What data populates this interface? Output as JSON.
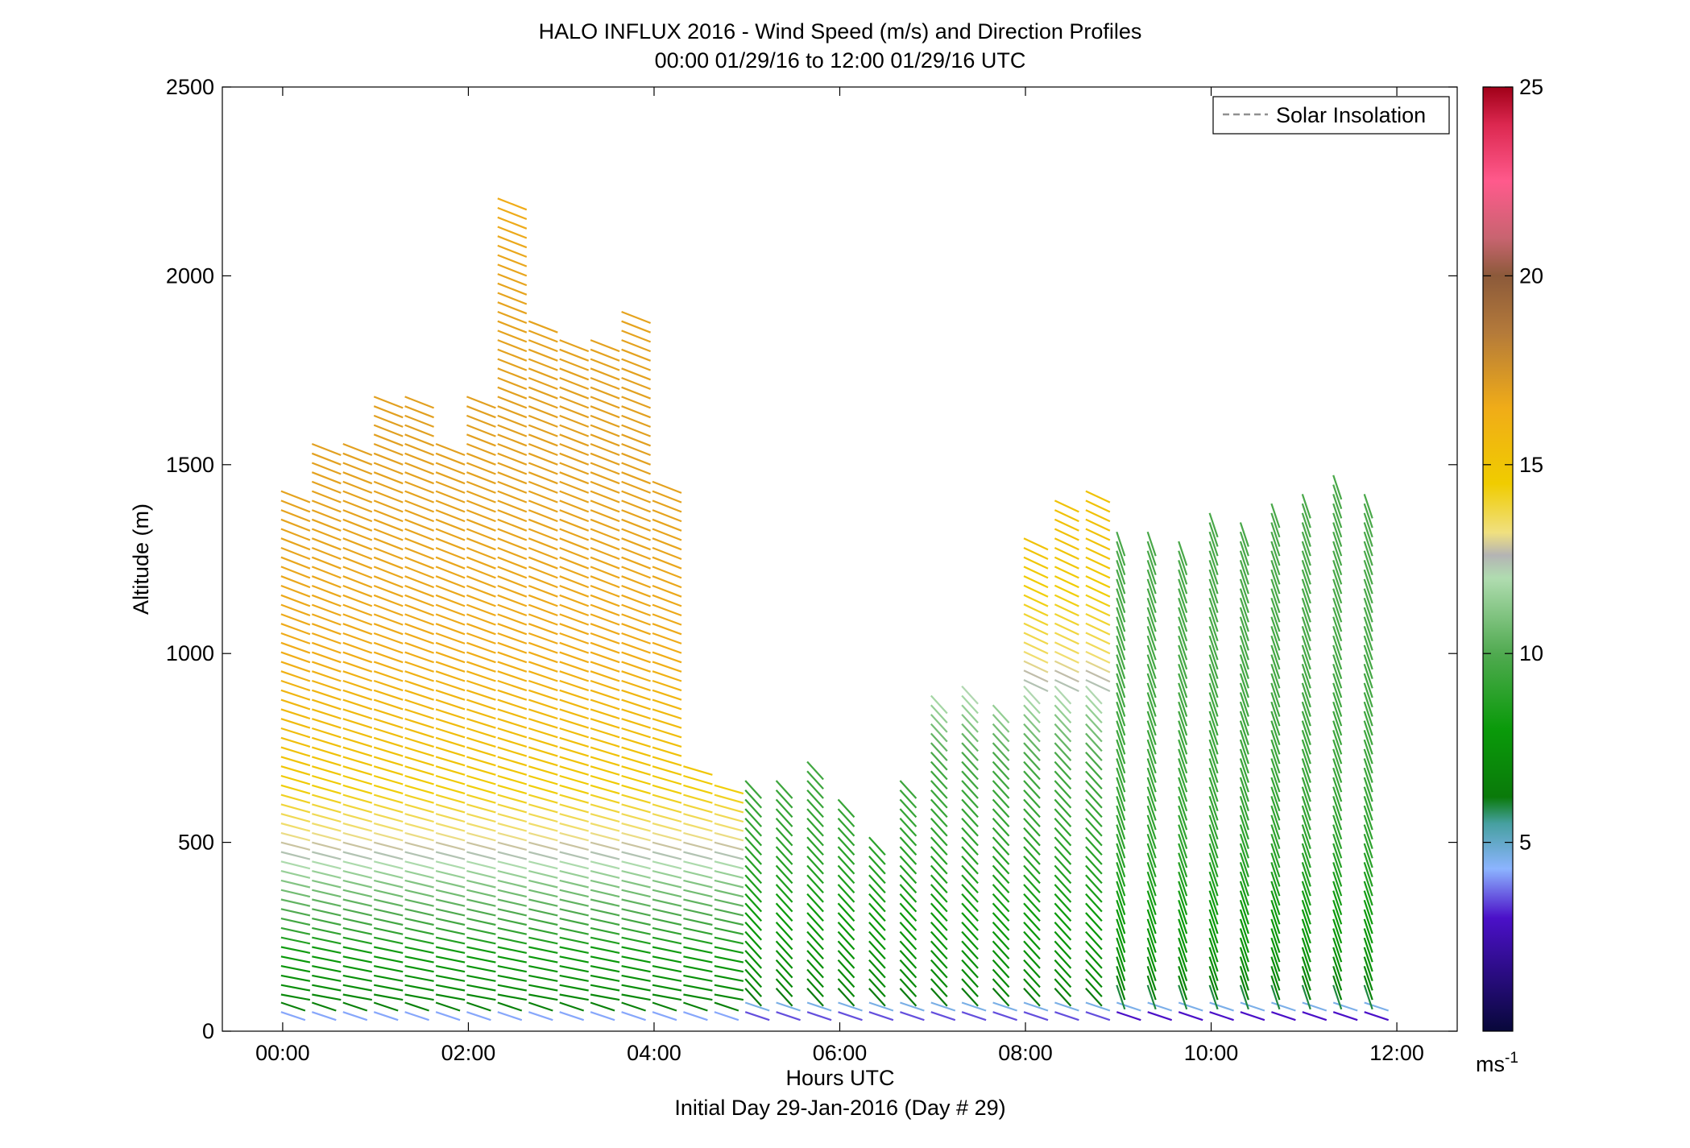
{
  "chart_data": {
    "type": "wind-barb-profile",
    "title": "HALO INFLUX 2016 - Wind Speed (m/s) and Direction Profiles",
    "subtitle": "00:00 01/29/16 to 12:00 01/29/16  UTC",
    "xlabel": "Hours UTC",
    "xlabel2": "Initial Day 29-Jan-2016 (Day # 29)",
    "ylabel": "Altitude (m)",
    "xlim_hours": [
      -0.65,
      12.65
    ],
    "ylim": [
      0,
      2500
    ],
    "x_ticks": [
      {
        "value": 0,
        "label": "00:00"
      },
      {
        "value": 2,
        "label": "02:00"
      },
      {
        "value": 4,
        "label": "04:00"
      },
      {
        "value": 6,
        "label": "06:00"
      },
      {
        "value": 8,
        "label": "08:00"
      },
      {
        "value": 10,
        "label": "10:00"
      },
      {
        "value": 12,
        "label": "12:00"
      }
    ],
    "y_ticks": [
      0,
      500,
      1000,
      1500,
      2000,
      2500
    ],
    "legend": {
      "label": "Solar Insolation",
      "line_style": "dashed",
      "color": "#909090",
      "position": "top-right"
    },
    "colorbar": {
      "min": 0,
      "max": 25,
      "ticks": [
        5,
        10,
        15,
        20,
        25
      ],
      "unit_label": "ms",
      "unit_exponent": "-1",
      "colors": [
        {
          "v": 0,
          "c": "#08083a"
        },
        {
          "v": 3,
          "c": "#4b10c8"
        },
        {
          "v": 4.3,
          "c": "#8cb4ff"
        },
        {
          "v": 5.5,
          "c": "#46a0a0"
        },
        {
          "v": 6.2,
          "c": "#0a7a0a"
        },
        {
          "v": 8,
          "c": "#0a9a0a"
        },
        {
          "v": 10,
          "c": "#50aa50"
        },
        {
          "v": 12,
          "c": "#b0dcb0"
        },
        {
          "v": 12.6,
          "c": "#b4b4b4"
        },
        {
          "v": 13.2,
          "c": "#f0e080"
        },
        {
          "v": 14.5,
          "c": "#f0cc00"
        },
        {
          "v": 16.5,
          "c": "#f0ac18"
        },
        {
          "v": 18.5,
          "c": "#b47a3a"
        },
        {
          "v": 20,
          "c": "#8c5a3a"
        },
        {
          "v": 21,
          "c": "#c86470"
        },
        {
          "v": 22.5,
          "c": "#ff5a8c"
        },
        {
          "v": 24,
          "c": "#dc2850"
        },
        {
          "v": 25,
          "c": "#a00018"
        }
      ]
    },
    "wind_profiles": {
      "times_hours": [
        0,
        0.333,
        0.667,
        1.0,
        1.333,
        1.667,
        2.0,
        2.333,
        2.667,
        3.0,
        3.333,
        3.667,
        4.0,
        4.333,
        4.667,
        5.0,
        5.333,
        5.667,
        6.0,
        6.333,
        6.667,
        7.0,
        7.333,
        7.667,
        8.0,
        8.333,
        8.667,
        9.0,
        9.333,
        9.667,
        10.0,
        10.333,
        10.667,
        11.0,
        11.333,
        11.667
      ],
      "top_altitude_m": [
        1420,
        1550,
        1550,
        1665,
        1665,
        1550,
        1670,
        2190,
        1880,
        1830,
        1820,
        1890,
        1450,
        700,
        650,
        640,
        660,
        700,
        590,
        500,
        640,
        870,
        900,
        860,
        1310,
        1390,
        1430,
        1310,
        1310,
        1280,
        1360,
        1330,
        1380,
        1400,
        1450,
        1400
      ],
      "altitude_step_m": 25,
      "speed_profile_ms": {
        "altitudes_m": [
          40,
          60,
          100,
          200,
          300,
          400,
          500,
          700,
          1000,
          1300,
          1600,
          2000,
          2200
        ],
        "early_0000_0500": [
          4.2,
          6.5,
          7.2,
          8.0,
          9.8,
          11.2,
          13.0,
          15.0,
          16.5,
          16.8,
          17.0,
          16.8,
          16.5
        ],
        "mid_0500_0900": [
          3.5,
          4.3,
          6.8,
          7.5,
          8.0,
          8.6,
          9.0,
          9.6,
          13.5,
          15.2,
          15.0,
          15.0,
          15.0
        ],
        "late_0900_1200": [
          3.0,
          4.3,
          6.5,
          7.6,
          8.0,
          8.6,
          9.0,
          9.4,
          9.7,
          9.8,
          9.8,
          9.8,
          9.8
        ]
      },
      "direction_note": "Early profiles flow westerly/north-westerly with shallow slant; later profiles turn to north-north-westerly with steep slant."
    }
  }
}
